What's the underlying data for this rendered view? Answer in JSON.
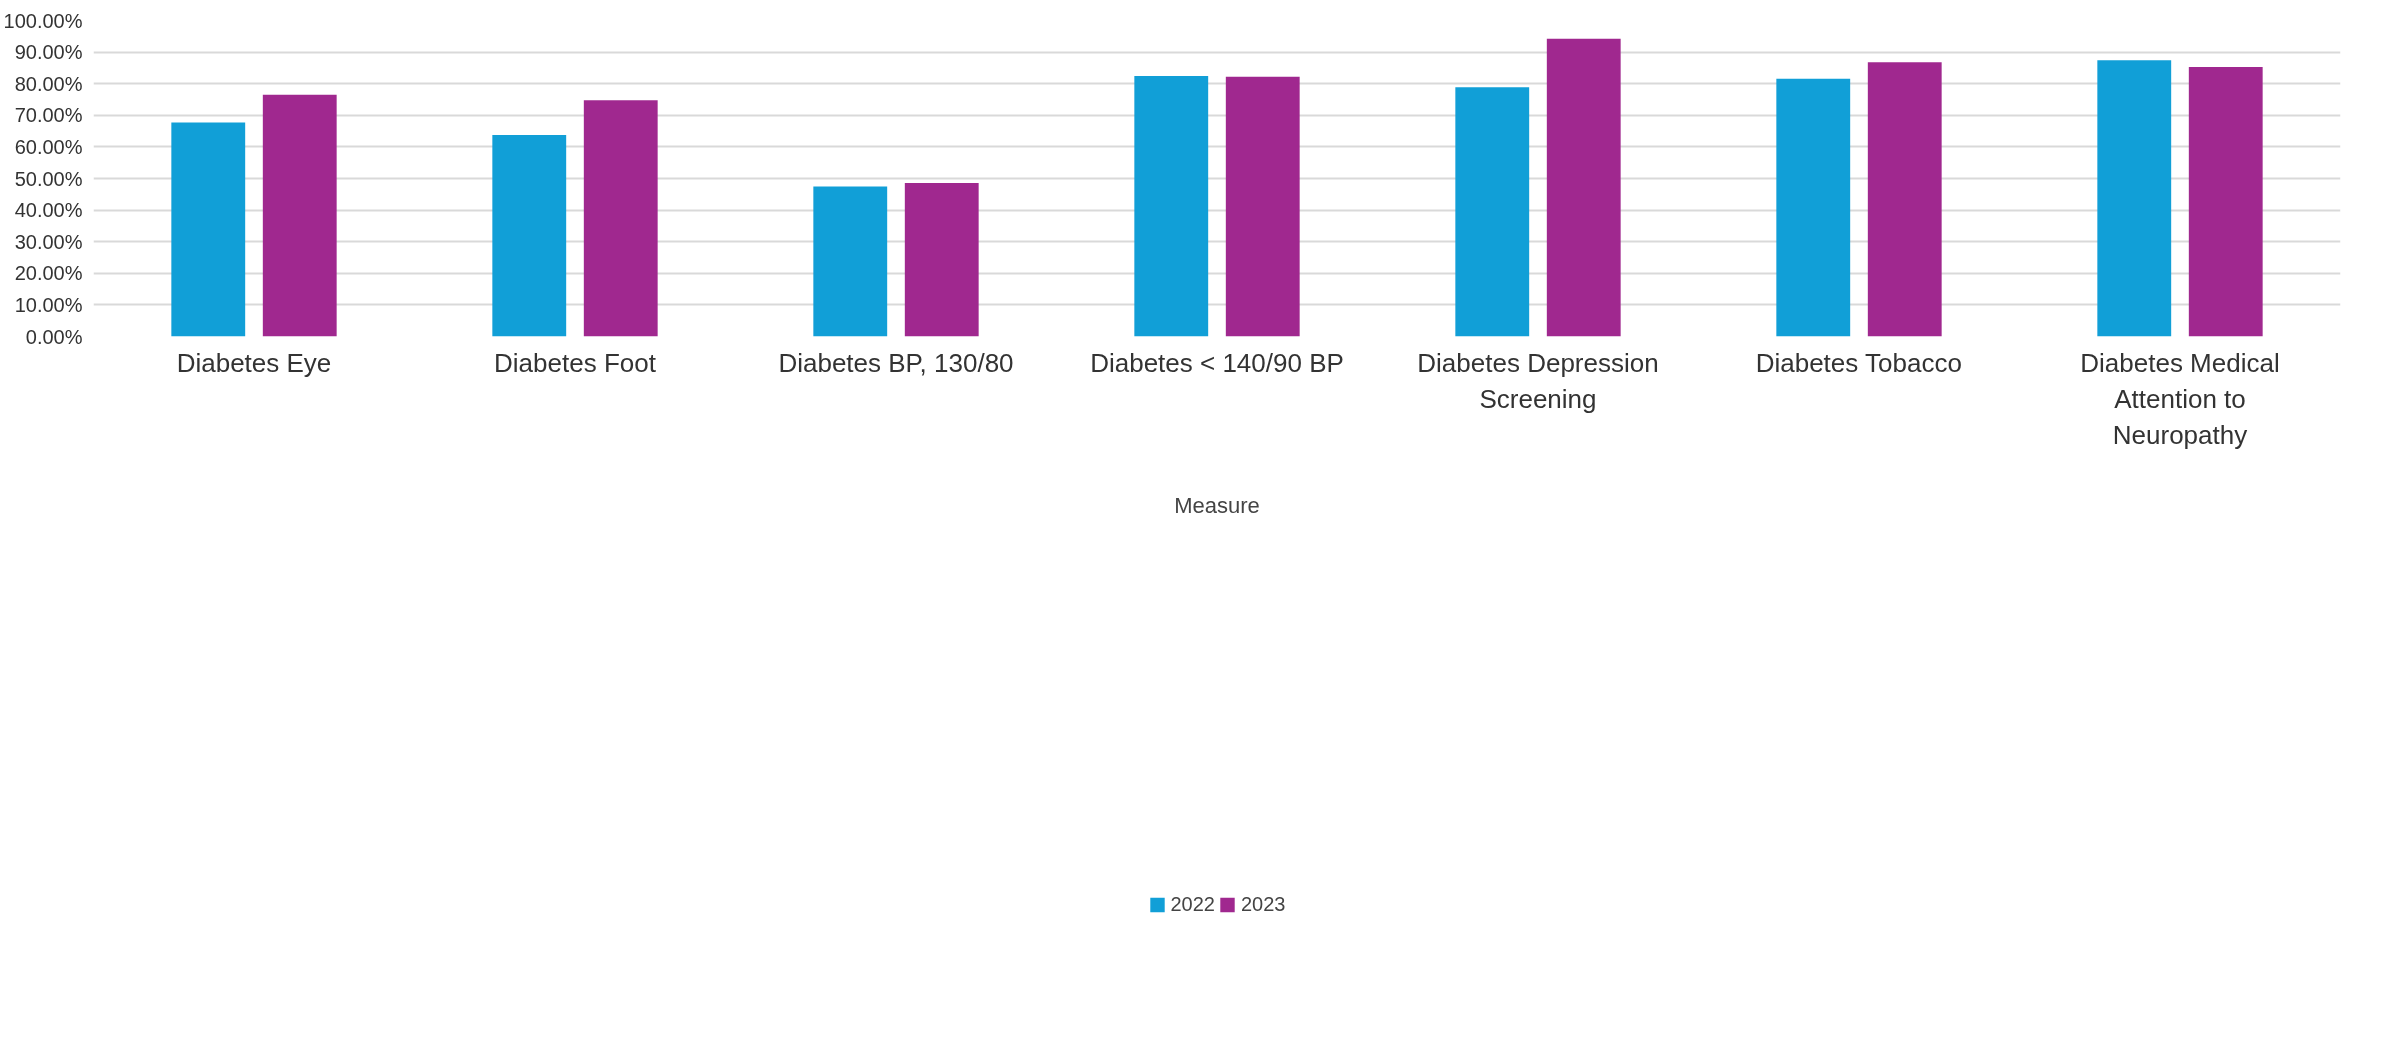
{
  "chart_data": {
    "type": "bar",
    "xlabel": "Measure",
    "categories": [
      "Diabetes Eye",
      "Diabetes Foot",
      "Diabetes BP, 130/80",
      "Diabetes < 140/90 BP",
      "Diabetes Depression Screening",
      "Diabetes Tobacco",
      "Diabetes Medical Attention to Neuropathy"
    ],
    "series": [
      {
        "name": "2022",
        "color": "#119fd7",
        "values": [
          67.7,
          63.8,
          47.5,
          82.4,
          78.9,
          81.6,
          87.4
        ]
      },
      {
        "name": "2023",
        "color": "#a0288f",
        "values": [
          76.5,
          74.8,
          48.6,
          82.2,
          94.2,
          86.8,
          85.3
        ]
      }
    ],
    "ylim": [
      0,
      100
    ],
    "yticks": [
      {
        "value": 0,
        "label": "0.00%"
      },
      {
        "value": 10,
        "label": "10.00%"
      },
      {
        "value": 20,
        "label": "20.00%"
      },
      {
        "value": 30,
        "label": "30.00%"
      },
      {
        "value": 40,
        "label": "40.00%"
      },
      {
        "value": 50,
        "label": "50.00%"
      },
      {
        "value": 60,
        "label": "60.00%"
      },
      {
        "value": 70,
        "label": "70.00%"
      },
      {
        "value": 80,
        "label": "80.00%"
      },
      {
        "value": 90,
        "label": "90.00%"
      },
      {
        "value": 100,
        "label": "100.00%"
      }
    ],
    "grid": "y",
    "legend": "bottom"
  }
}
